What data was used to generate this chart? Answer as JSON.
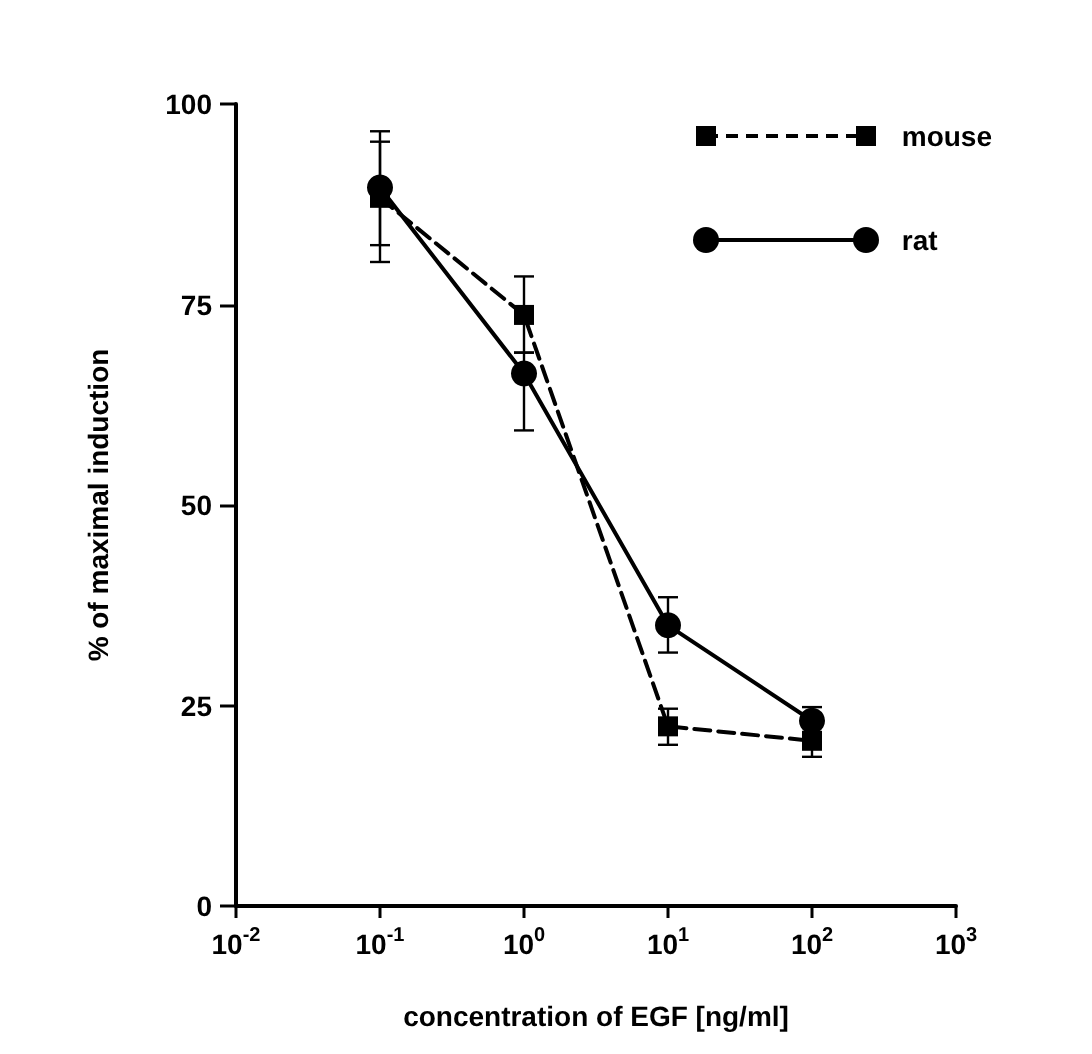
{
  "chart_data": {
    "type": "line",
    "xlabel": "concentration of EGF [ng/ml]",
    "ylabel": "% of maximal induction",
    "x": [
      0.1,
      1,
      10,
      100
    ],
    "series": [
      {
        "name": "mouse",
        "color": "#000000",
        "marker": "square",
        "line_style": "dashed",
        "values": [
          88.3,
          73.7,
          22.4,
          20.6
        ],
        "errors": [
          [
            80.3,
            95.3
          ],
          [
            69,
            78.5
          ],
          [
            20.1,
            24.6
          ],
          [
            18.6,
            20.6
          ]
        ]
      },
      {
        "name": "rat",
        "color": "#000000",
        "marker": "circle",
        "line_style": "solid",
        "values": [
          89.6,
          66.4,
          35,
          23.1
        ],
        "errors": [
          [
            82.4,
            96.6
          ],
          [
            59.3,
            69
          ],
          [
            31.6,
            38.5
          ],
          [
            23.1,
            24.8
          ]
        ]
      }
    ],
    "log": "x",
    "xlim": [
      0.01,
      1000
    ],
    "xticks": [
      {
        "value": 0.01,
        "label": "10$^{-2}$"
      },
      {
        "value": 0.1,
        "label": "10$^{-1}$"
      },
      {
        "value": 1,
        "label": "10$^{0}$"
      },
      {
        "value": 10,
        "label": "10$^{1}$"
      },
      {
        "value": 100,
        "label": "10$^{2}$"
      },
      {
        "value": 1000,
        "label": "10$^{3}$"
      }
    ],
    "ylim": [
      0,
      100
    ],
    "yticks": [
      0,
      25,
      50,
      75,
      100
    ],
    "grid": false,
    "legend": "top right"
  }
}
